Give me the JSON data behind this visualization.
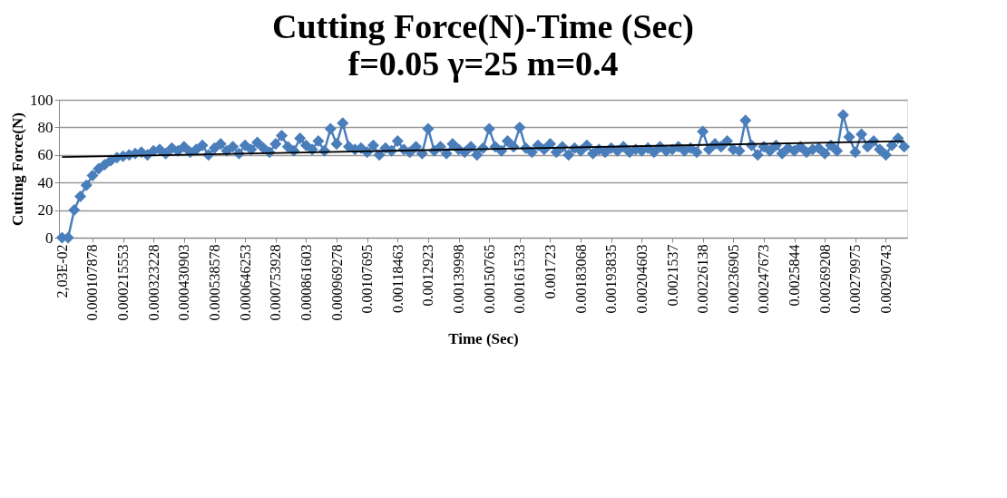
{
  "chart_data": {
    "type": "line",
    "title": "Cutting Force(N)-Time (Sec)",
    "subtitle": "f=0.05 γ=25 m=0.4",
    "xlabel": "Time (Sec)",
    "ylabel": "Cutting  Force(N)",
    "categories": [
      "2,03E-02",
      null,
      null,
      null,
      null,
      "0.000107878",
      null,
      null,
      null,
      null,
      "0.000215553",
      null,
      null,
      null,
      null,
      "0.000323228",
      null,
      null,
      null,
      null,
      "0.000430903",
      null,
      null,
      null,
      null,
      "0.000538578",
      null,
      null,
      null,
      null,
      "0.000646253",
      null,
      null,
      null,
      null,
      "0.000753928",
      null,
      null,
      null,
      null,
      "0.000861603",
      null,
      null,
      null,
      null,
      "0.000969278",
      null,
      null,
      null,
      null,
      "0.00107695",
      null,
      null,
      null,
      null,
      "0.00118463",
      null,
      null,
      null,
      null,
      "0.0012923",
      null,
      null,
      null,
      null,
      "0.00139998",
      null,
      null,
      null,
      null,
      "0.00150765",
      null,
      null,
      null,
      null,
      "0.00161533",
      null,
      null,
      null,
      null,
      "0.001723",
      null,
      null,
      null,
      null,
      "0.00183068",
      null,
      null,
      null,
      null,
      "0.00193835",
      null,
      null,
      null,
      null,
      "0.00204603",
      null,
      null,
      null,
      null,
      "0.0021537",
      null,
      null,
      null,
      null,
      "0.00226138",
      null,
      null,
      null,
      null,
      "0.00236905",
      null,
      null,
      null,
      null,
      "0.00247673",
      null,
      null,
      null,
      null,
      "0.0025844",
      null,
      null,
      null,
      null,
      "0.00269208",
      null,
      null,
      null,
      null,
      "0.00279975",
      null,
      null,
      null,
      null,
      "0.00290743",
      null,
      null,
      null
    ],
    "series": [
      {
        "color": "#4a7ebb",
        "marker": "diamond",
        "values": [
          0,
          0,
          20,
          30,
          38,
          45,
          50,
          53,
          56,
          58,
          59,
          60,
          61,
          62,
          60,
          63,
          64,
          61,
          65,
          63,
          66,
          62,
          64,
          67,
          60,
          65,
          68,
          63,
          66,
          61,
          67,
          64,
          69,
          65,
          62,
          68,
          74,
          66,
          63,
          72,
          67,
          64,
          70,
          63,
          79,
          68,
          83,
          66,
          64,
          65,
          62,
          67,
          60,
          65,
          63,
          70,
          64,
          62,
          66,
          61,
          79,
          63,
          66,
          61,
          68,
          64,
          62,
          66,
          60,
          65,
          79,
          66,
          63,
          70,
          66,
          80,
          65,
          62,
          67,
          64,
          68,
          62,
          66,
          60,
          65,
          63,
          67,
          61,
          64,
          62,
          65,
          63,
          66,
          62,
          64,
          63,
          65,
          62,
          66,
          63,
          64,
          66,
          63,
          65,
          62,
          77,
          64,
          68,
          66,
          70,
          64,
          63,
          85,
          67,
          60,
          66,
          63,
          67,
          61,
          65,
          63,
          66,
          62,
          64,
          65,
          61,
          67,
          63,
          89,
          73,
          62,
          75,
          66,
          70,
          64,
          60,
          67,
          72,
          66
        ]
      },
      {
        "color": "#000000",
        "marker": "none",
        "values": [
          58.5,
          null,
          null,
          null,
          null,
          null,
          null,
          null,
          null,
          null,
          null,
          null,
          null,
          null,
          null,
          null,
          null,
          null,
          null,
          null,
          null,
          null,
          null,
          null,
          null,
          null,
          null,
          null,
          null,
          null,
          null,
          null,
          null,
          null,
          null,
          null,
          null,
          null,
          null,
          null,
          null,
          null,
          null,
          null,
          null,
          null,
          null,
          null,
          null,
          null,
          null,
          null,
          null,
          null,
          null,
          null,
          null,
          null,
          null,
          null,
          null,
          null,
          null,
          null,
          null,
          null,
          null,
          null,
          null,
          null,
          null,
          null,
          null,
          null,
          null,
          null,
          null,
          null,
          null,
          null,
          null,
          null,
          null,
          null,
          null,
          null,
          null,
          null,
          null,
          null,
          null,
          null,
          null,
          null,
          null,
          null,
          null,
          null,
          null,
          null,
          null,
          null,
          null,
          null,
          null,
          null,
          null,
          null,
          null,
          null,
          null,
          null,
          null,
          null,
          null,
          null,
          null,
          null,
          null,
          null,
          null,
          null,
          null,
          null,
          null,
          null,
          null,
          null,
          null,
          null,
          null,
          null,
          null,
          null,
          null,
          null,
          null,
          null,
          70
        ]
      }
    ],
    "ylim": [
      0,
      100
    ],
    "yticks": [
      0,
      20,
      40,
      60,
      80,
      100
    ],
    "grid": "y"
  }
}
